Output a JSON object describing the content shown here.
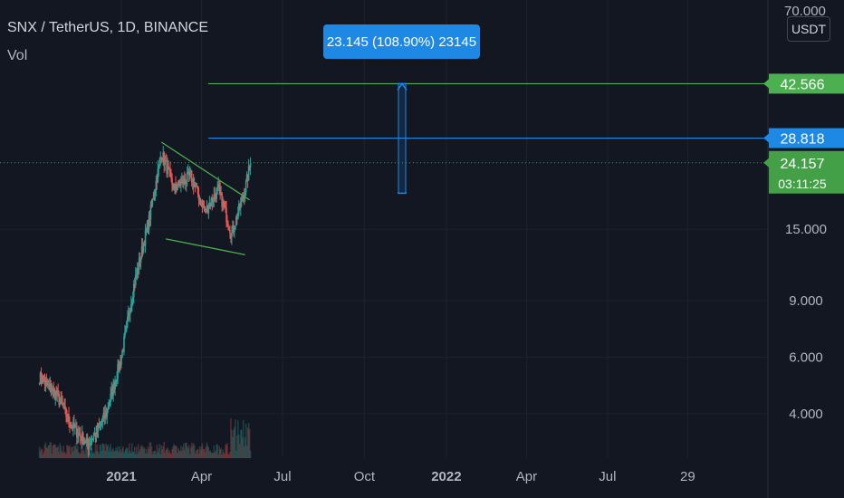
{
  "header": {
    "title": "SNX / TetherUS, 1D, BINANCE",
    "volume_label": "Vol"
  },
  "currency_button": "USDT",
  "measure_label": "23.145 (108.90%) 23145",
  "price_labels": {
    "target": "42.566",
    "entry": "28.818",
    "last": "24.157",
    "countdown": "03:11:25",
    "top_partial": "70.000"
  },
  "colors": {
    "background": "#131722",
    "up": "#26a69a",
    "down": "#ef5350",
    "trendline": "#4caf50",
    "blue": "#1e88e5",
    "last_price_bg": "#43a047",
    "grid": "#1e222d"
  },
  "chart_data": {
    "type": "candlestick",
    "title": "SNX / TetherUS, 1D, BINANCE",
    "y_scale": "log",
    "y_ticks": [
      4,
      6,
      9,
      15
    ],
    "y_tick_labels": [
      "4.000",
      "6.000",
      "9.000",
      "15.000"
    ],
    "x_tick_labels": [
      "2021",
      "Apr",
      "Jul",
      "Oct",
      "2022",
      "Apr",
      "Jul",
      "29"
    ],
    "last_price": 24.157,
    "horizontal_lines": [
      {
        "value": 42.566,
        "color": "#4caf50"
      },
      {
        "value": 28.818,
        "color": "#1e88e5"
      }
    ],
    "measurement": {
      "from": 19.421,
      "to": 42.566,
      "change": 23.145,
      "change_pct": 108.9
    },
    "trendlines": [
      {
        "from": {
          "date": "2021-02-15",
          "value": 28.0
        },
        "to": {
          "date": "2021-05-25",
          "value": 18.5
        }
      },
      {
        "from": {
          "date": "2021-02-20",
          "value": 14.0
        },
        "to": {
          "date": "2021-05-20",
          "value": 12.5
        }
      }
    ],
    "price_path": [
      {
        "date": "2020-10-01",
        "value": 5.2
      },
      {
        "date": "2020-10-20",
        "value": 4.6
      },
      {
        "date": "2020-11-05",
        "value": 3.7
      },
      {
        "date": "2020-11-25",
        "value": 3.2
      },
      {
        "date": "2020-12-15",
        "value": 4.0
      },
      {
        "date": "2021-01-01",
        "value": 6.0
      },
      {
        "date": "2021-01-15",
        "value": 10.0
      },
      {
        "date": "2021-02-01",
        "value": 16.0
      },
      {
        "date": "2021-02-15",
        "value": 26.0
      },
      {
        "date": "2021-03-01",
        "value": 20.0
      },
      {
        "date": "2021-03-20",
        "value": 22.0
      },
      {
        "date": "2021-04-05",
        "value": 17.0
      },
      {
        "date": "2021-04-20",
        "value": 20.0
      },
      {
        "date": "2021-05-05",
        "value": 14.5
      },
      {
        "date": "2021-05-20",
        "value": 20.0
      },
      {
        "date": "2021-05-26",
        "value": 24.157
      }
    ]
  }
}
